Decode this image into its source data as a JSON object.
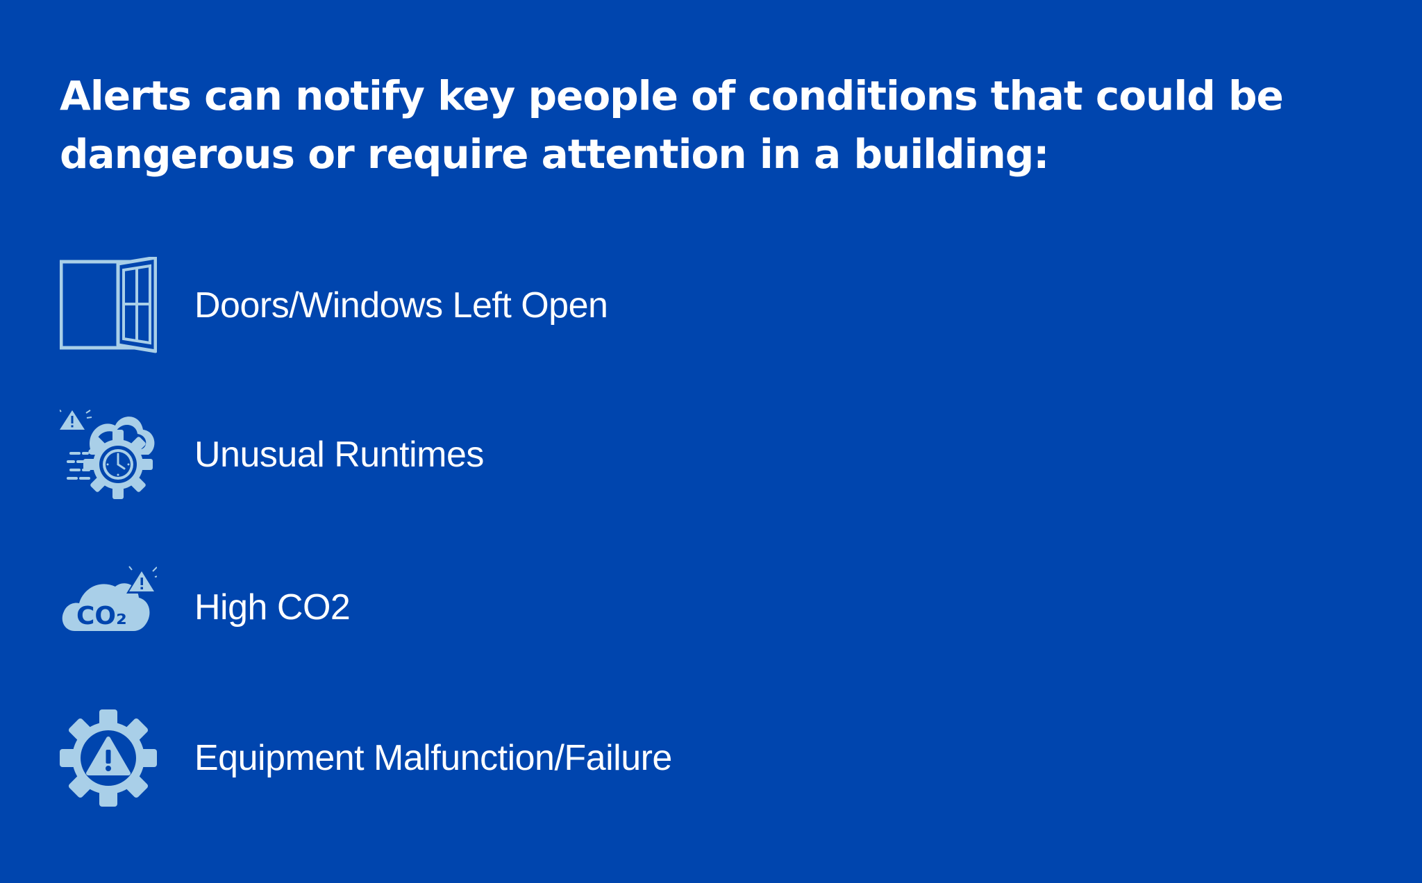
{
  "headline": {
    "line1": "Alerts can notify key people of conditions that could be",
    "line2": "dangerous or require attention in a building:"
  },
  "colors": {
    "background": "#0045ae",
    "icon": "#a9cfe8",
    "text": "#ffffff"
  },
  "items": [
    {
      "icon": "open-window-icon",
      "label": "Doors/Windows Left Open"
    },
    {
      "icon": "runtime-alert-icon",
      "label": "Unusual Runtimes"
    },
    {
      "icon": "co2-cloud-alert-icon",
      "label": "High CO2",
      "icon_text": "CO₂"
    },
    {
      "icon": "gear-warning-icon",
      "label": "Equipment Malfunction/Failure"
    }
  ]
}
